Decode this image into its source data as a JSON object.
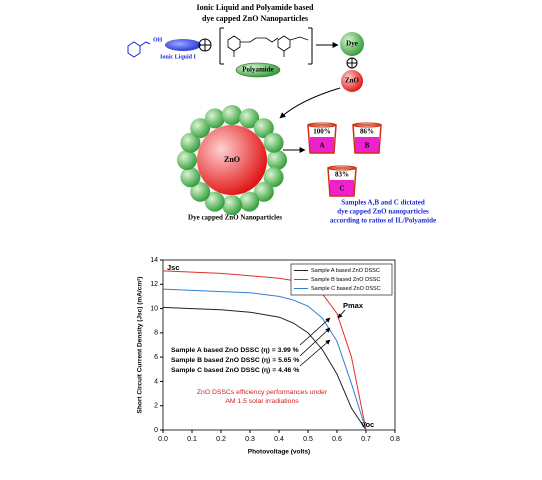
{
  "diagram": {
    "title": [
      "Ionic Liquid and Polyamide based",
      "dye capped ZnO Nanoparticles"
    ],
    "ionic_liquid": "Ionic Liquid I",
    "hydroxyl": "OH",
    "polyamide": "Polyamide",
    "dye": "Dye",
    "zno": "ZnO",
    "core": "ZnO",
    "nanoparticle_caption": "Dye capped ZnO Nanoparticles",
    "beakers": [
      {
        "percent": "100%",
        "label": "A"
      },
      {
        "percent": "86%",
        "label": "B"
      },
      {
        "percent": "83%",
        "label": "C"
      }
    ],
    "samples_note": [
      "Samples A,B and C dictated",
      "dye capped ZnO nanoparticles",
      "according to ratios of IL/Polyamide"
    ]
  },
  "chart_data": {
    "type": "line",
    "xlabel": "Photovoltage (volts)",
    "ylabel": "Short Circuit Current Density (Jsc) (mA/cm²)",
    "x": [
      0,
      0.1,
      0.2,
      0.3,
      0.4,
      0.45,
      0.5,
      0.55,
      0.6,
      0.65,
      0.7
    ],
    "series": [
      {
        "name": "Sample A based ZnO DSSC",
        "color": "#222222",
        "values": [
          10.1,
          10.0,
          9.9,
          9.7,
          9.3,
          8.8,
          8.0,
          6.6,
          4.6,
          1.8,
          0
        ]
      },
      {
        "name": "Sample B based ZnO DSSC",
        "color": "#e0302a",
        "values": [
          13.1,
          13.0,
          12.9,
          12.7,
          12.5,
          12.3,
          12.0,
          11.2,
          9.6,
          6.0,
          0
        ]
      },
      {
        "name": "Sample C based ZnO DSSC",
        "color": "#2f7fd0",
        "values": [
          11.6,
          11.5,
          11.4,
          11.3,
          11.0,
          10.7,
          10.2,
          9.2,
          7.3,
          3.8,
          0
        ]
      }
    ],
    "xlim": [
      0,
      0.8
    ],
    "xticks": [
      {
        "value": 0,
        "label": "0.0"
      },
      0.1,
      0.2,
      0.3,
      0.4,
      0.5,
      0.6,
      0.7,
      0.8
    ],
    "ylim": [
      0,
      14
    ],
    "yticks": [
      0,
      2,
      4,
      6,
      8,
      10,
      12,
      14
    ],
    "legend": "upper right",
    "annotations": {
      "jsc": "Jsc",
      "pmax": "Pmax",
      "voc": "Voc",
      "efficiencies": [
        "Sample A based ZnO DSSC (η) = 3.99 %",
        "Sample B based ZnO DSSC (η) = 5.65 %",
        "Sample C based ZnO DSSC (η) = 4.46 %"
      ],
      "note": [
        "ZnO DSSCs efficiency performances under",
        "AM 1.5 solar irradiations"
      ]
    }
  }
}
